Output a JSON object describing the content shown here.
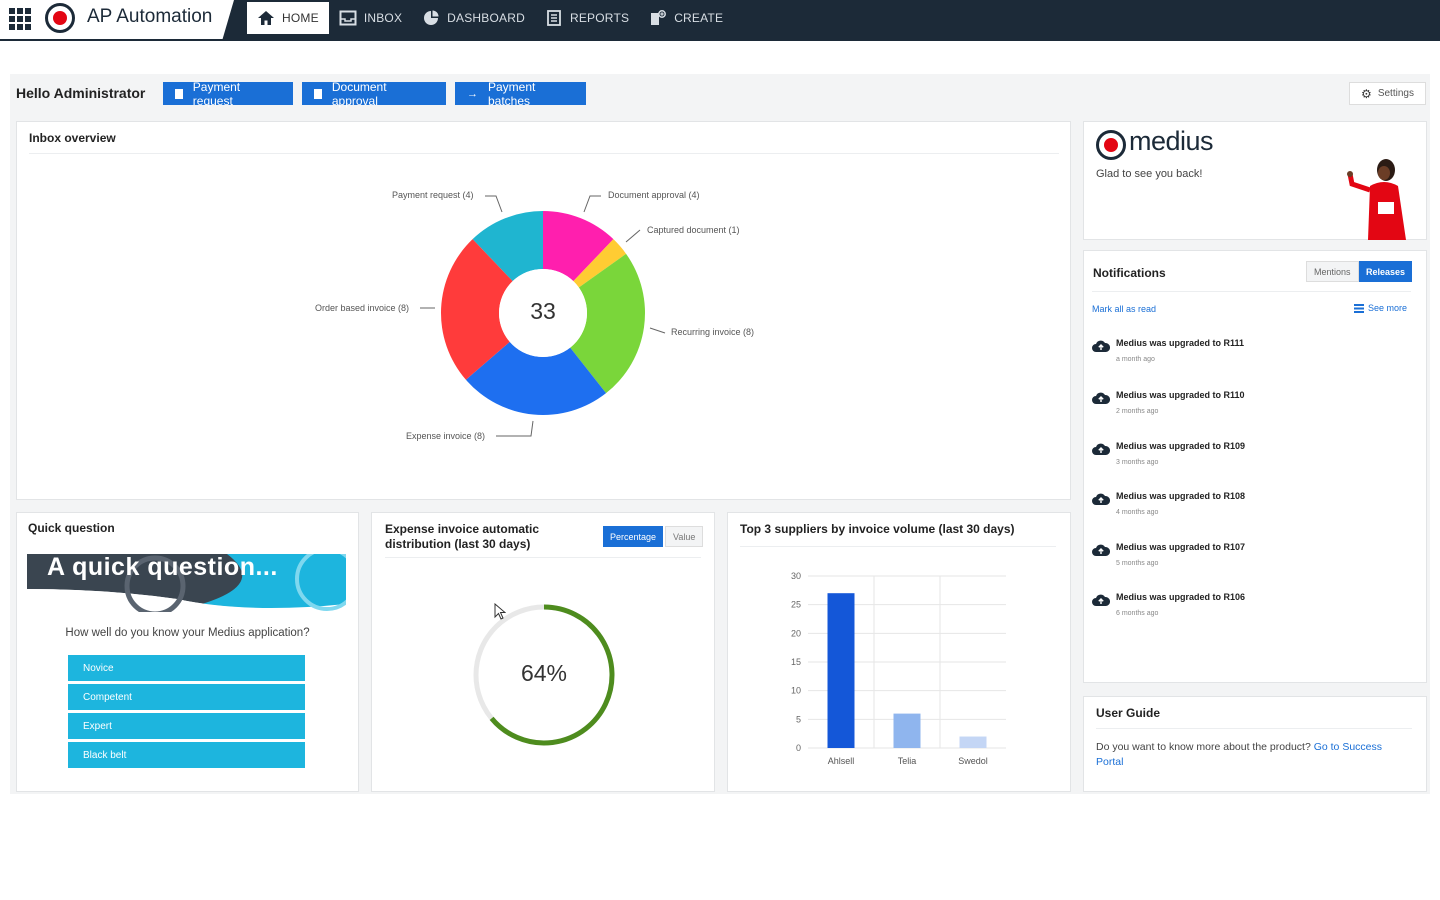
{
  "app": {
    "title": "AP Automation"
  },
  "nav": [
    {
      "label": "HOME",
      "icon": "home-icon",
      "active": true
    },
    {
      "label": "INBOX",
      "icon": "inbox-icon",
      "active": false
    },
    {
      "label": "DASHBOARD",
      "icon": "dashboard-icon",
      "active": false
    },
    {
      "label": "REPORTS",
      "icon": "reports-icon",
      "active": false
    },
    {
      "label": "CREATE",
      "icon": "create-icon",
      "active": false
    }
  ],
  "header": {
    "greeting": "Hello Administrator",
    "buttons": [
      "Payment request",
      "Document approval",
      "Payment batches"
    ],
    "settings": "Settings"
  },
  "inbox": {
    "title": "Inbox overview",
    "total": "33",
    "labels": {
      "payment_request": "Payment request (4)",
      "document_approval": "Document approval (4)",
      "captured_document": "Captured document (1)",
      "recurring_invoice": "Recurring invoice (8)",
      "expense_invoice": "Expense invoice (8)",
      "order_based_invoice": "Order based invoice (8)"
    }
  },
  "brand": {
    "name": "medius",
    "welcome": "Glad to see you back!"
  },
  "notifications": {
    "title": "Notifications",
    "tabs": [
      "Mentions",
      "Releases"
    ],
    "mark_all": "Mark all as read",
    "see_more": "See more",
    "items": [
      {
        "title": "Medius was upgraded to R111",
        "time": "a month ago"
      },
      {
        "title": "Medius was upgraded to R110",
        "time": "2 months ago"
      },
      {
        "title": "Medius was upgraded to R109",
        "time": "3 months ago"
      },
      {
        "title": "Medius was upgraded to R108",
        "time": "4 months ago"
      },
      {
        "title": "Medius was upgraded to R107",
        "time": "5 months ago"
      },
      {
        "title": "Medius was upgraded to R106",
        "time": "6 months ago"
      }
    ]
  },
  "quick_question": {
    "title": "Quick question",
    "banner": "A quick question...",
    "question": "How well do you know your Medius application?",
    "options": [
      "Novice",
      "Competent",
      "Expert",
      "Black belt"
    ]
  },
  "expense": {
    "title_line1": "Expense invoice automatic",
    "title_line2": "distribution (last 30 days)",
    "toggle": [
      "Percentage",
      "Value"
    ],
    "percent_label": "64%",
    "percent": 64
  },
  "suppliers": {
    "title": "Top 3 suppliers by invoice volume (last 30 days)"
  },
  "user_guide": {
    "title": "User Guide",
    "text": "Do you want to know more about the product?",
    "link_part1": "Go to Success",
    "link_part2": "Portal"
  },
  "chart_data": [
    {
      "type": "pie",
      "title": "Inbox overview",
      "categories": [
        "Payment request",
        "Document approval",
        "Captured document",
        "Recurring invoice",
        "Expense invoice",
        "Order based invoice"
      ],
      "values": [
        4,
        4,
        1,
        8,
        8,
        8
      ],
      "center_label": "33",
      "colors": [
        "#1fb5d0",
        "#ff1fae",
        "#ffcc33",
        "#7ad63a",
        "#1e6ff0",
        "#ff3b3b"
      ]
    },
    {
      "type": "bar",
      "title": "Top 3 suppliers by invoice volume (last 30 days)",
      "categories": [
        "Ahlsell",
        "Telia",
        "Swedol"
      ],
      "values": [
        27,
        6,
        2
      ],
      "ylim": [
        0,
        30
      ],
      "yticks": [
        0,
        5,
        10,
        15,
        20,
        25,
        30
      ],
      "colors": [
        "#1457d8",
        "#8fb5ee",
        "#c4d6f5"
      ]
    }
  ]
}
